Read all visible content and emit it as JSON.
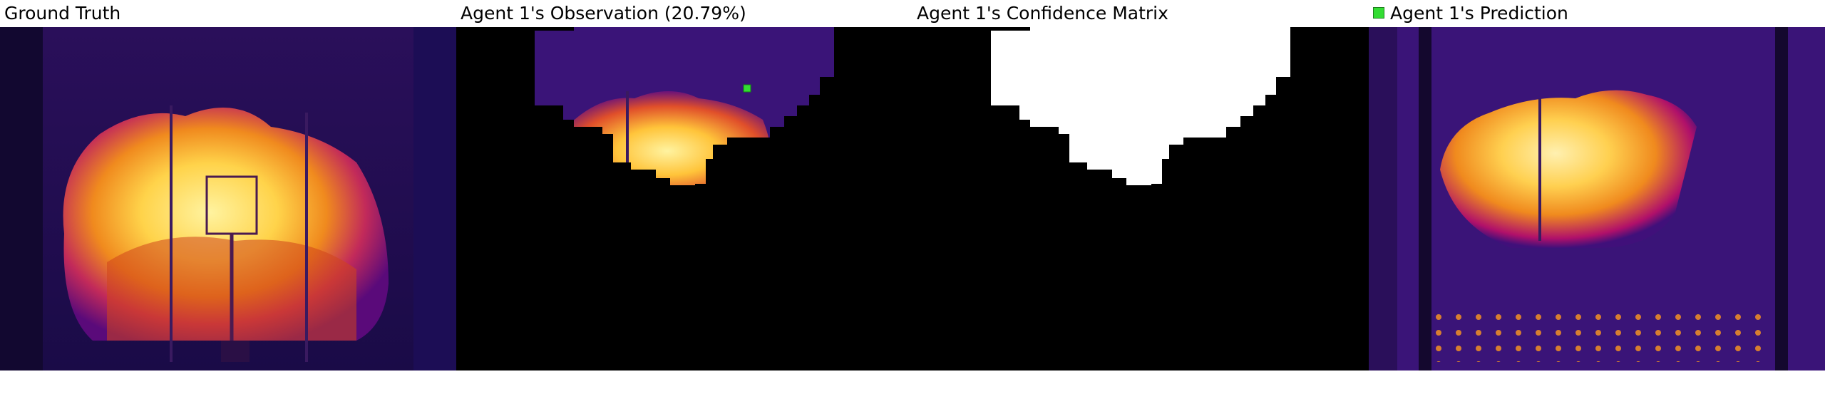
{
  "panels": {
    "ground_truth": {
      "title": "Ground Truth"
    },
    "observation": {
      "title": "Agent 1's Observation (20.79%)"
    },
    "confidence": {
      "title": "Agent 1's Confidence Matrix"
    },
    "prediction": {
      "title": "Agent 1's Prediction"
    }
  },
  "colors": {
    "background_dark": "#1a0b47",
    "mask": "#000000",
    "confidence_known": "#ffffff",
    "agent_marker": "#33dd33",
    "fire_hot": "#ffe060",
    "fire_mid": "#f08020",
    "fire_low": "#b0106a"
  }
}
